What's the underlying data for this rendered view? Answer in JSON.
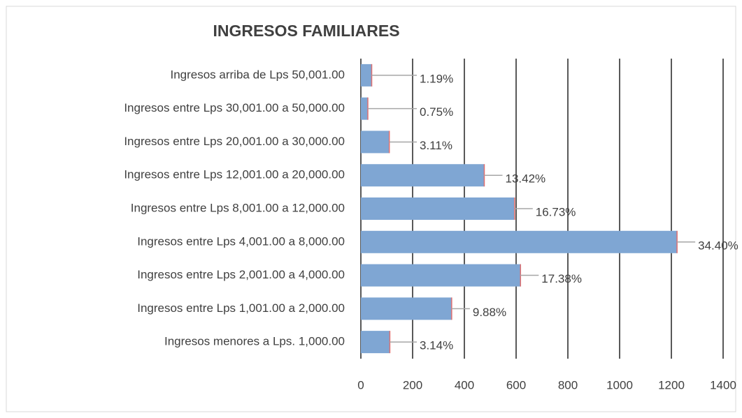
{
  "chart_data": {
    "type": "bar",
    "orientation": "horizontal",
    "title": "INGRESOS FAMILIARES",
    "categories": [
      "Ingresos arriba de Lps 50,001.00",
      "Ingresos entre Lps 30,001.00 a 50,000.00",
      "Ingresos entre Lps 20,001.00 a 30,000.00",
      "Ingresos entre Lps 12,001.00 a 20,000.00",
      "Ingresos entre Lps 8,001.00  a 12,000.00",
      "Ingresos entre Lps 4,001.00  a  8,000.00",
      "Ingresos entre Lps 2,001.00  a  4,000.00",
      "Ingresos entre Lps 1,001.00  a  2,000.00",
      "Ingresos menores a Lps. 1,000.00"
    ],
    "values": [
      42,
      27,
      110,
      477,
      594,
      1222,
      617,
      351,
      112
    ],
    "value_labels": [
      "1.19%",
      "0.75%",
      "3.11%",
      "13.42%",
      "16.73%",
      "34.40%",
      "17.38%",
      "9.88%",
      "3.14%"
    ],
    "color": "#7fa6d3",
    "xlim": [
      0,
      1400
    ],
    "xticks": [
      0,
      200,
      400,
      600,
      800,
      1000,
      1200,
      1400
    ],
    "grid": true
  }
}
